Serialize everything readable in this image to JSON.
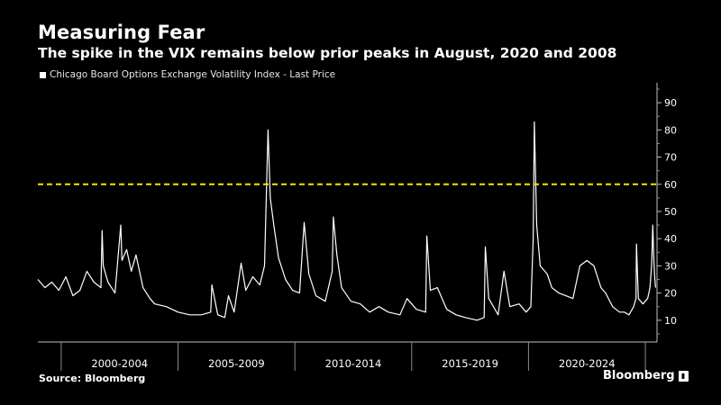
{
  "title": "Measuring Fear",
  "subtitle": "The spike in the VIX remains below prior peaks in August, 2020 and 2008",
  "source": "Source: Bloomberg",
  "brand": "Bloomberg",
  "colors": {
    "background": "#000000",
    "line": "#ffffff",
    "reference": "#f2e600"
  },
  "chart_data": {
    "type": "line",
    "title": "Measuring Fear",
    "subtitle": "The spike in the VIX remains below prior peaks in August, 2020 and 2008",
    "series": [
      {
        "name": "Chicago Board Options Exchange Volatility Index - Last Price",
        "x": [
          1999.0,
          1999.3,
          1999.6,
          1999.9,
          2000.2,
          2000.5,
          2000.8,
          2001.1,
          2001.4,
          2001.7,
          2001.75,
          2001.8,
          2002.0,
          2002.3,
          2002.55,
          2002.6,
          2002.8,
          2003.0,
          2003.2,
          2003.5,
          2003.8,
          2004.0,
          2004.5,
          2005.0,
          2005.5,
          2006.0,
          2006.4,
          2006.45,
          2006.7,
          2007.0,
          2007.16,
          2007.4,
          2007.6,
          2007.7,
          2007.9,
          2008.2,
          2008.5,
          2008.7,
          2008.85,
          2008.95,
          2009.1,
          2009.3,
          2009.6,
          2009.9,
          2010.2,
          2010.4,
          2010.6,
          2010.9,
          2011.3,
          2011.6,
          2011.65,
          2011.8,
          2012.0,
          2012.4,
          2012.8,
          2013.2,
          2013.6,
          2014.0,
          2014.5,
          2014.8,
          2015.2,
          2015.6,
          2015.65,
          2015.8,
          2016.1,
          2016.5,
          2016.9,
          2017.3,
          2017.8,
          2018.1,
          2018.15,
          2018.3,
          2018.7,
          2018.95,
          2019.2,
          2019.6,
          2019.9,
          2020.1,
          2020.2,
          2020.25,
          2020.35,
          2020.5,
          2020.8,
          2021.0,
          2021.3,
          2021.6,
          2021.9,
          2022.2,
          2022.5,
          2022.8,
          2023.1,
          2023.3,
          2023.6,
          2023.9,
          2024.1,
          2024.3,
          2024.5,
          2024.6,
          2024.62,
          2024.7,
          2024.9,
          2025.1,
          2025.2,
          2025.27,
          2025.32,
          2025.36,
          2025.4,
          2025.44
        ],
        "values": [
          25,
          22,
          24,
          21,
          26,
          19,
          21,
          28,
          24,
          22,
          43,
          30,
          24,
          20,
          45,
          32,
          36,
          28,
          34,
          22,
          18,
          16,
          15,
          13,
          12,
          12,
          13,
          23,
          12,
          11,
          19,
          13,
          25,
          31,
          21,
          26,
          23,
          30,
          80,
          55,
          45,
          33,
          25,
          21,
          20,
          46,
          27,
          19,
          17,
          28,
          48,
          34,
          22,
          17,
          16,
          13,
          15,
          13,
          12,
          18,
          14,
          13,
          41,
          21,
          22,
          14,
          12,
          11,
          10,
          11,
          37,
          18,
          12,
          28,
          15,
          16,
          13,
          15,
          40,
          83,
          45,
          30,
          27,
          22,
          20,
          19,
          18,
          30,
          32,
          30,
          22,
          20,
          15,
          13,
          13,
          12,
          15,
          18,
          38,
          18,
          16,
          18,
          22,
          30,
          45,
          33,
          26,
          22
        ]
      }
    ],
    "reference_line": {
      "y": 60,
      "style": "dashed",
      "color": "#f2e600"
    },
    "categories": [
      "2000-2004",
      "2005-2009",
      "2010-2014",
      "2015-2019",
      "2020-2024"
    ],
    "yticks": [
      10,
      20,
      30,
      40,
      50,
      60,
      70,
      80,
      90
    ],
    "ylim": [
      2,
      96
    ],
    "xlim": [
      1999.0,
      2025.5
    ],
    "y_axis_position": "right",
    "grid": false,
    "legend": "top-left"
  }
}
